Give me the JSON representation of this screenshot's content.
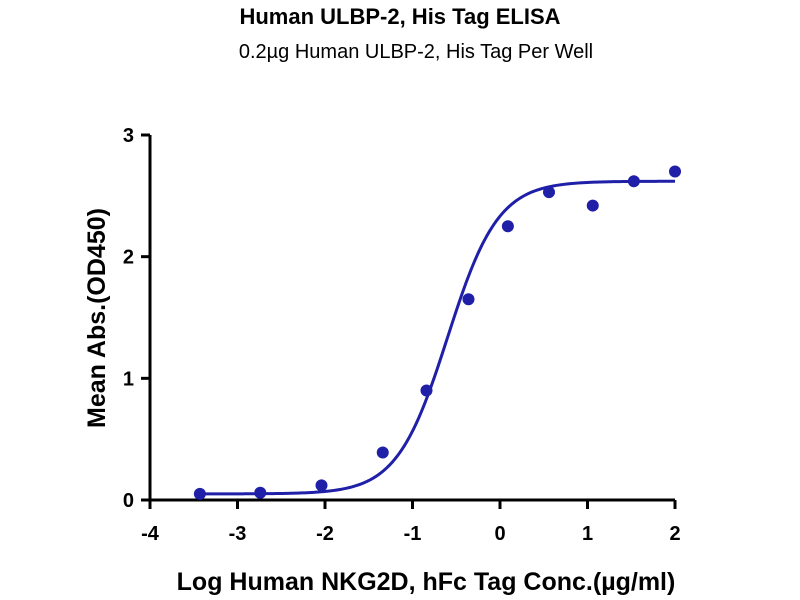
{
  "chart_data": {
    "type": "scatter",
    "title": "Human ULBP-2, His Tag ELISA",
    "subtitle": "0.2µg Human ULBP-2, His Tag Per Well",
    "xlabel": "Log Human NKG2D, hFc Tag Conc.(µg/ml)",
    "ylabel": "Mean Abs.(OD450)",
    "xlim": [
      -4,
      2
    ],
    "ylim": [
      0,
      3
    ],
    "xticks": [
      "-4",
      "-3",
      "-2",
      "-1",
      "0",
      "1",
      "2"
    ],
    "yticks": [
      "0",
      "1",
      "2",
      "3"
    ],
    "grid": false,
    "legend": "none",
    "series": [
      {
        "points": [
          {
            "x": -3.43,
            "y": 0.05
          },
          {
            "x": -2.74,
            "y": 0.06
          },
          {
            "x": -2.04,
            "y": 0.12
          },
          {
            "x": -1.34,
            "y": 0.39
          },
          {
            "x": -0.84,
            "y": 0.9
          },
          {
            "x": -0.36,
            "y": 1.65
          },
          {
            "x": 0.09,
            "y": 2.25
          },
          {
            "x": 0.56,
            "y": 2.53
          },
          {
            "x": 1.06,
            "y": 2.42
          },
          {
            "x": 1.53,
            "y": 2.62
          },
          {
            "x": 2.0,
            "y": 2.7
          }
        ],
        "fit": {
          "model": "4PL",
          "bottom": 0.05,
          "top": 2.62,
          "logEC50": -0.6,
          "hill": 1.5,
          "xrange": [
            -3.43,
            2.0
          ]
        }
      }
    ],
    "colors": {
      "series": "#1f1fa8",
      "axis": "#000000"
    }
  }
}
